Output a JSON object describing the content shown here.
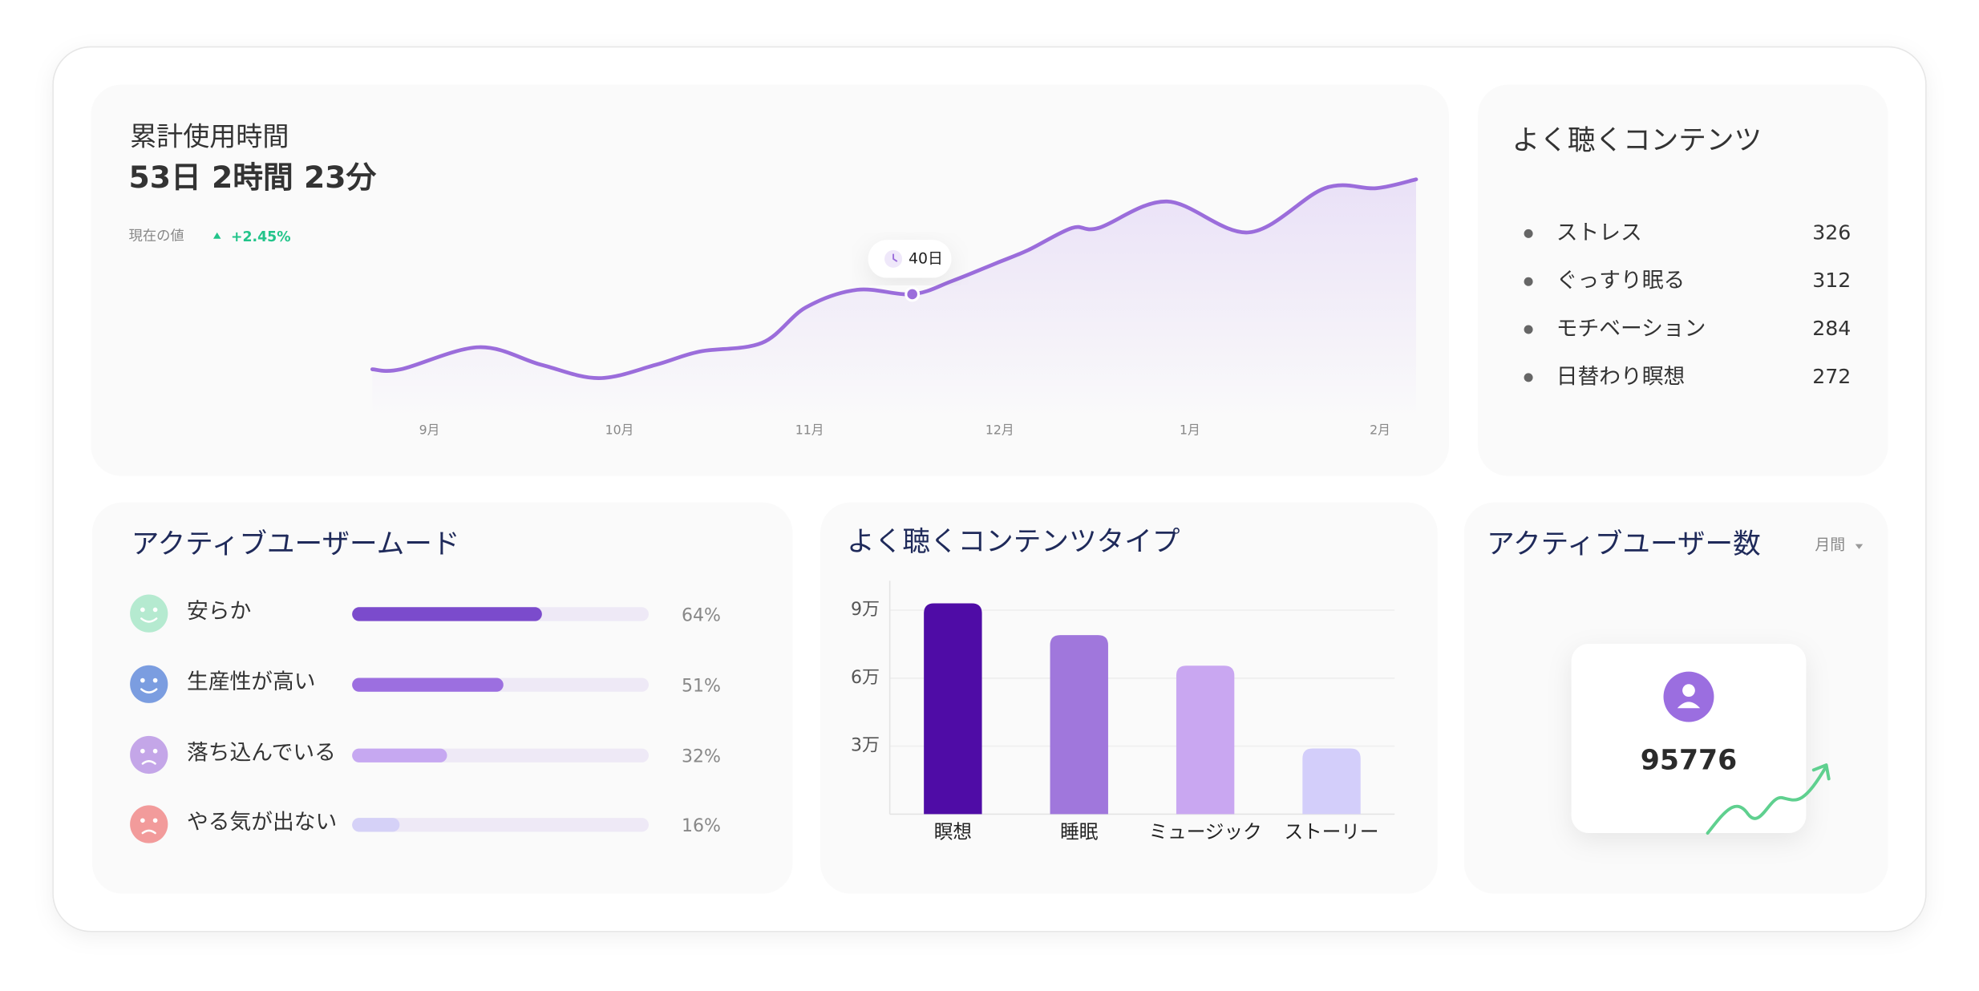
{
  "chart_data": [
    {
      "type": "line",
      "title": "累計使用時間",
      "headline": "53日 2時間 23分",
      "current_label": "現在の値",
      "change": "+2.45%",
      "x": [
        -0.3,
        -0.15,
        0.26,
        0.59,
        0.89,
        1.19,
        1.42,
        1.75,
        1.98,
        2.25,
        2.54,
        2.75,
        2.98,
        3.15,
        3.38,
        3.52,
        3.88,
        4.31,
        4.71,
        4.98,
        5.19
      ],
      "values": [
        31.5,
        31.5,
        34,
        32,
        30.5,
        32,
        33.5,
        34.5,
        38.5,
        40.5,
        40,
        41.5,
        43.5,
        45,
        47.5,
        47.5,
        50.5,
        47,
        52,
        52,
        53
      ],
      "value_labels": [
        null,
        null,
        null,
        null,
        null,
        null,
        null,
        null,
        null,
        null,
        "40日",
        null,
        null,
        null,
        null,
        null,
        null,
        null,
        null,
        null,
        null
      ],
      "color": "#9b6ddb",
      "xlim": [
        -0.3,
        5.19
      ],
      "xticks": [
        {
          "value": 0,
          "label": "9月"
        },
        {
          "value": 1,
          "label": "10月"
        },
        {
          "value": 2,
          "label": "11月"
        },
        {
          "value": 3,
          "label": "12月"
        },
        {
          "value": 4,
          "label": "1月"
        },
        {
          "value": 5,
          "label": "2月"
        }
      ],
      "ylim": [
        26,
        55
      ]
    },
    {
      "type": "hbar",
      "title": "アクティブユーザームード",
      "categories": [
        "安らか",
        "生産性が高い",
        "落ち込んでいる",
        "やる気が出ない"
      ],
      "values": [
        64,
        51,
        32,
        16
      ],
      "value_labels": [
        "64%",
        "51%",
        "32%",
        "16%"
      ],
      "colors": [
        "#7b4bcc",
        "#9c6fe0",
        "#c6a8f1",
        "#d5d1f7"
      ],
      "xlim": [
        0,
        100
      ]
    },
    {
      "type": "bar",
      "title": "よく聴くコンテンツタイプ",
      "categories": [
        "瞑想",
        "睡眠",
        "ミュージック",
        "ストーリー"
      ],
      "values": [
        93000,
        79000,
        65500,
        29000
      ],
      "colors": [
        "#4f0ca6",
        "#a077dc",
        "#c9a7f1",
        "#d3cefa"
      ],
      "ylim": [
        0,
        103000
      ],
      "yticks": [
        {
          "value": 30000,
          "label": "3万"
        },
        {
          "value": 60000,
          "label": "6万"
        },
        {
          "value": 90000,
          "label": "9万"
        }
      ],
      "grid": true
    }
  ],
  "top_contents": {
    "title": "よく聴くコンテンツ",
    "items": [
      {
        "name": "ストレス",
        "count": 326
      },
      {
        "name": "ぐっすり眠る",
        "count": 312
      },
      {
        "name": "モチベーション",
        "count": 284
      },
      {
        "name": "日替わり瞑想",
        "count": 272
      }
    ]
  },
  "active_users": {
    "title": "アクティブユーザー数",
    "period": "月間",
    "value": 95776
  }
}
